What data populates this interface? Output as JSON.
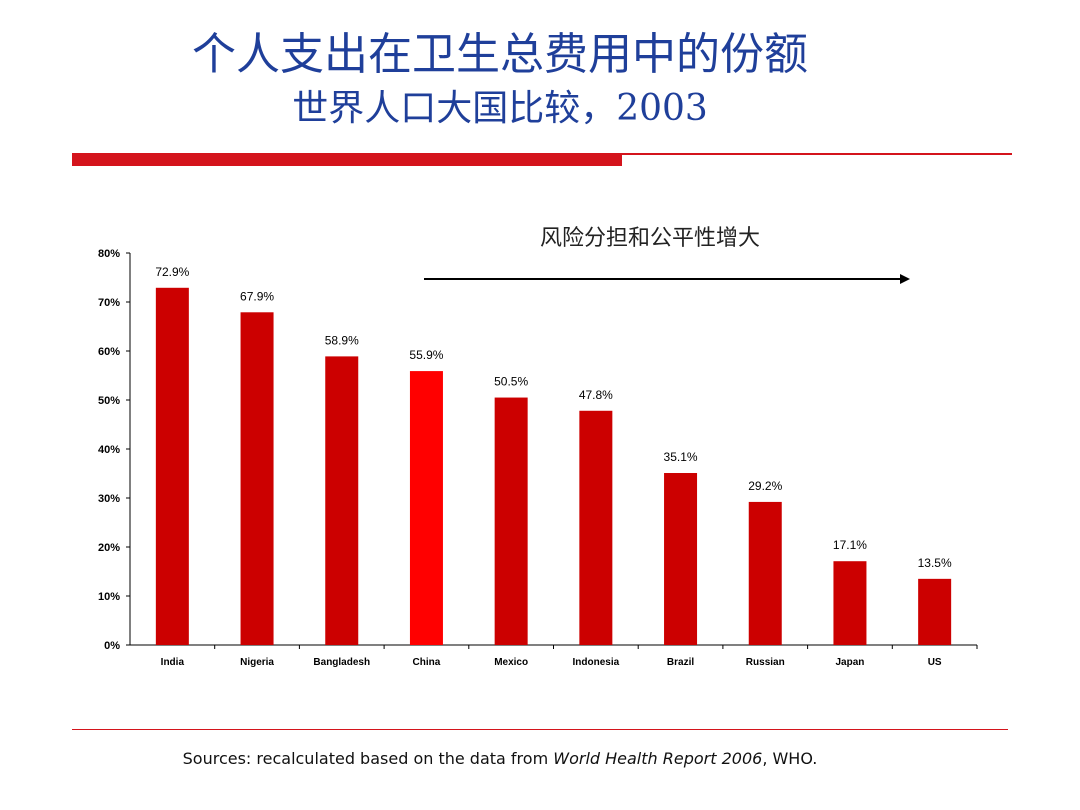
{
  "header": {
    "title": "个人支出在卫生总费用中的份额",
    "subtitle": "世界人口大国比较，2003"
  },
  "annotation": {
    "text": "风险分担和公平性增大"
  },
  "source": {
    "prefix": "Sources: recalculated based on the data from ",
    "report": "World Health Report 2006",
    "suffix": ", WHO."
  },
  "colors": {
    "bar": "#cc0000",
    "highlight_bar": "#ff0000",
    "title": "#1f3f9a",
    "rule": "#d4141c"
  },
  "chart_data": {
    "type": "bar",
    "categories": [
      "India",
      "Nigeria",
      "Bangladesh",
      "China",
      "Mexico",
      "Indonesia",
      "Brazil",
      "Russian",
      "Japan",
      "US"
    ],
    "values": [
      72.9,
      67.9,
      58.9,
      55.9,
      50.5,
      47.8,
      35.1,
      29.2,
      17.1,
      13.5
    ],
    "data_labels": [
      "72.9%",
      "67.9%",
      "58.9%",
      "55.9%",
      "50.5%",
      "47.8%",
      "35.1%",
      "29.2%",
      "17.1%",
      "13.5%"
    ],
    "highlighted_category": "China",
    "ylim": [
      0,
      80
    ],
    "y_ticks": [
      "0%",
      "10%",
      "20%",
      "30%",
      "40%",
      "50%",
      "60%",
      "70%",
      "80%"
    ],
    "grid": false,
    "xlabel": "",
    "ylabel": ""
  }
}
